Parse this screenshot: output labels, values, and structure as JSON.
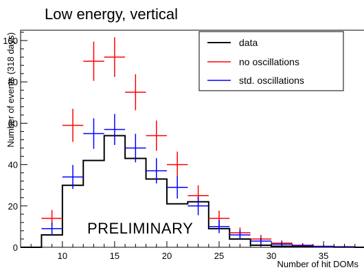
{
  "chart_data": {
    "type": "histogram",
    "title": "Low energy, vertical",
    "xlabel": "Number of hit DOMs",
    "ylabel": "Number of events (318 days)",
    "annotation": "PRELIMINARY",
    "xlim": [
      6,
      39
    ],
    "ylim": [
      0,
      105
    ],
    "xticks": [
      10,
      15,
      20,
      25,
      30,
      35
    ],
    "yticks": [
      0,
      20,
      40,
      60,
      80,
      100
    ],
    "legend_position": "top-right",
    "data": {
      "name": "data",
      "color": "#000000",
      "bin_edges": [
        6,
        8,
        10,
        12,
        14,
        16,
        18,
        20,
        22,
        24,
        26,
        28,
        30,
        32,
        34,
        36,
        38,
        39
      ],
      "values": [
        0,
        6,
        30,
        42,
        54,
        43,
        33,
        21,
        22,
        9,
        4,
        1,
        0.5,
        0.5,
        0.3,
        0.1,
        0
      ]
    },
    "series": [
      {
        "name": "no oscillations",
        "color": "#ff0000",
        "x": [
          9,
          11,
          13,
          15,
          17,
          19,
          21,
          23,
          25,
          27,
          29,
          31,
          33,
          35,
          37
        ],
        "y": [
          14,
          59,
          90,
          92,
          75,
          54,
          40,
          25,
          14,
          7,
          4,
          2,
          1,
          0.5,
          0.3
        ],
        "yerr": [
          4,
          8,
          9.5,
          9.6,
          8.7,
          7.3,
          6.3,
          5,
          3.7,
          2.6,
          2,
          1.4,
          1,
          0.7,
          0.5
        ]
      },
      {
        "name": "std. oscillations",
        "color": "#0000ff",
        "x": [
          9,
          11,
          13,
          15,
          17,
          19,
          21,
          23,
          25,
          27,
          29,
          31,
          33,
          35,
          37
        ],
        "y": [
          9,
          34,
          55,
          57,
          48,
          37,
          29,
          20,
          10,
          6,
          3,
          1.5,
          0.8,
          0.4,
          0.2
        ],
        "yerr": [
          3,
          5.8,
          7.4,
          7.5,
          6.9,
          6.1,
          5.4,
          4.5,
          3.2,
          2.4,
          1.7,
          1.2,
          0.9,
          0.6,
          0.4
        ]
      }
    ]
  }
}
